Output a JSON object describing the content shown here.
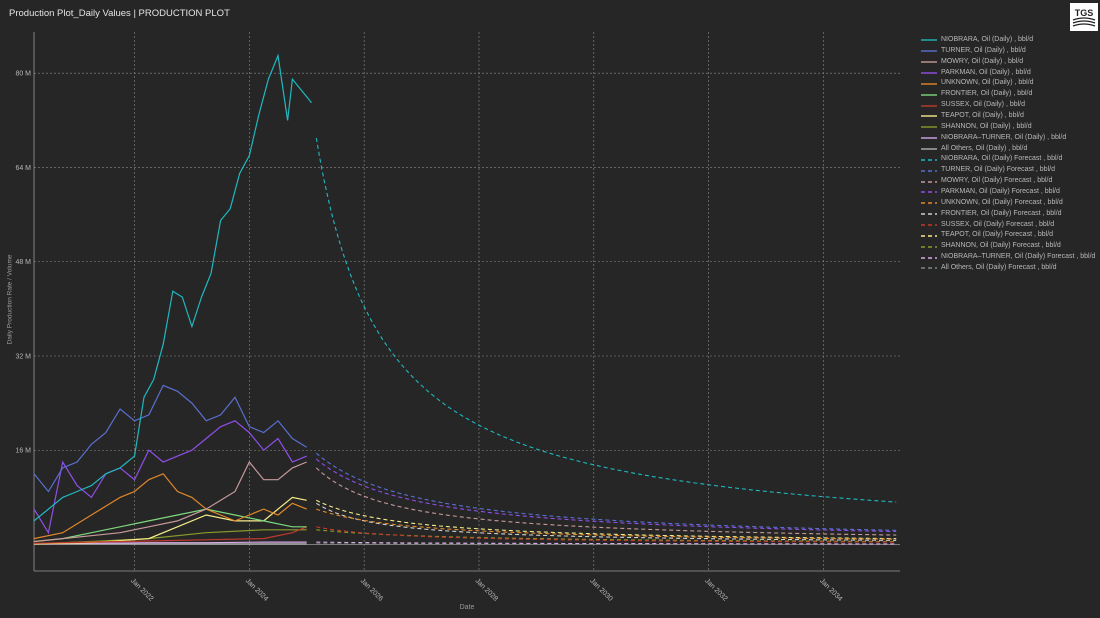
{
  "header": {
    "title": "Production Plot_Daily Values | PRODUCTION PLOT",
    "logo_text": "TGS"
  },
  "chart_data": {
    "type": "line",
    "title": "Production Plot_Daily Values | PRODUCTION PLOT",
    "xlabel": "Date",
    "ylabel": "Daily Production Rate / Volume",
    "xlim": [
      "2020-04-01",
      "2035-05-01"
    ],
    "ylim": [
      -4.5,
      87
    ],
    "yticks": [
      16,
      32,
      48,
      64,
      80
    ],
    "ytick_labels": [
      "16 M",
      "32 M",
      "48 M",
      "64 M",
      "80 M"
    ],
    "xticks": [
      "2022-01-01",
      "2024-01-01",
      "2026-01-01",
      "2028-01-01",
      "2030-01-01",
      "2032-01-01",
      "2034-01-01"
    ],
    "xtick_labels": [
      "Jan 2022",
      "Jan 2024",
      "Jan 2026",
      "Jan 2028",
      "Jan 2030",
      "Jan 2032",
      "Jan 2034"
    ],
    "grid": true,
    "legend_position": "right",
    "series": [
      {
        "name": "NIOBRARA, Oil (Daily) , bbl/d",
        "color": "#1fb8c0",
        "dash": false,
        "x": [
          "2020-04",
          "2020-07",
          "2020-10",
          "2021-01",
          "2021-04",
          "2021-07",
          "2021-10",
          "2022-01",
          "2022-03",
          "2022-05",
          "2022-07",
          "2022-09",
          "2022-11",
          "2023-01",
          "2023-03",
          "2023-05",
          "2023-07",
          "2023-09",
          "2023-11",
          "2024-01",
          "2024-03",
          "2024-05",
          "2024-07",
          "2024-09",
          "2024-10",
          "2024-11",
          "2025-01",
          "2025-02"
        ],
        "y": [
          4,
          6,
          8,
          9,
          10,
          12,
          13,
          15,
          25,
          28,
          34,
          43,
          42,
          37,
          42,
          46,
          55,
          57,
          63,
          66,
          73,
          79,
          83,
          72,
          79,
          78,
          76,
          75
        ]
      },
      {
        "name": "TURNER, Oil (Daily) , bbl/d",
        "color": "#5a6fd0",
        "dash": false,
        "x": [
          "2020-04",
          "2020-07",
          "2020-10",
          "2021-01",
          "2021-04",
          "2021-07",
          "2021-10",
          "2022-01",
          "2022-04",
          "2022-07",
          "2022-10",
          "2023-01",
          "2023-04",
          "2023-07",
          "2023-10",
          "2024-01",
          "2024-04",
          "2024-07",
          "2024-10",
          "2025-01"
        ],
        "y": [
          12,
          9,
          13,
          14,
          17,
          19,
          23,
          21,
          22,
          27,
          26,
          24,
          21,
          22,
          25,
          20,
          19,
          21,
          18,
          16.5
        ]
      },
      {
        "name": "MOWRY, Oil (Daily) , bbl/d",
        "color": "#c89a9a",
        "dash": false,
        "x": [
          "2020-04",
          "2020-10",
          "2021-04",
          "2021-10",
          "2022-04",
          "2022-10",
          "2023-04",
          "2023-10",
          "2024-01",
          "2024-04",
          "2024-07",
          "2024-10",
          "2025-01"
        ],
        "y": [
          0.5,
          1,
          1.5,
          2,
          3,
          4,
          6,
          9,
          14,
          11,
          11,
          13,
          14
        ]
      },
      {
        "name": "PARKMAN, Oil (Daily) , bbl/d",
        "color": "#8f4fe8",
        "dash": false,
        "x": [
          "2020-04",
          "2020-07",
          "2020-10",
          "2021-01",
          "2021-04",
          "2021-07",
          "2021-10",
          "2022-01",
          "2022-04",
          "2022-07",
          "2022-10",
          "2023-01",
          "2023-04",
          "2023-07",
          "2023-10",
          "2024-01",
          "2024-04",
          "2024-07",
          "2024-10",
          "2025-01"
        ],
        "y": [
          6,
          2,
          14,
          10,
          8,
          12,
          13,
          11,
          16,
          14,
          15,
          16,
          18,
          20,
          21,
          19,
          16,
          18,
          14,
          15
        ]
      },
      {
        "name": "UNKNOWN, Oil (Daily) , bbl/d",
        "color": "#e0882a",
        "dash": false,
        "x": [
          "2020-04",
          "2020-10",
          "2021-04",
          "2021-10",
          "2022-01",
          "2022-04",
          "2022-07",
          "2022-10",
          "2023-01",
          "2023-04",
          "2023-07",
          "2023-10",
          "2024-01",
          "2024-04",
          "2024-07",
          "2024-10",
          "2025-01"
        ],
        "y": [
          1,
          2,
          5,
          8,
          9,
          11,
          12,
          9,
          8,
          6,
          5,
          4,
          5,
          6,
          5,
          7,
          6
        ]
      },
      {
        "name": "FRONTIER, Oil (Daily) , bbl/d",
        "color": "#7ed87e",
        "dash": false,
        "x": [
          "2020-04",
          "2020-10",
          "2021-04",
          "2021-10",
          "2022-04",
          "2022-10",
          "2023-04",
          "2023-10",
          "2024-04",
          "2024-10",
          "2025-01"
        ],
        "y": [
          0.5,
          1,
          2,
          3,
          4,
          5,
          6,
          5,
          4,
          3,
          3
        ]
      },
      {
        "name": "SUSSEX, Oil (Daily) , bbl/d",
        "color": "#c0392b",
        "dash": false,
        "x": [
          "2020-04",
          "2021-04",
          "2022-04",
          "2023-04",
          "2024-04",
          "2024-10",
          "2025-01"
        ],
        "y": [
          0.2,
          0.4,
          0.6,
          0.8,
          1,
          2,
          3
        ]
      },
      {
        "name": "TEAPOT, Oil (Daily) , bbl/d",
        "color": "#f5ec8a",
        "dash": false,
        "x": [
          "2020-04",
          "2021-04",
          "2022-04",
          "2022-10",
          "2023-04",
          "2023-10",
          "2024-04",
          "2024-07",
          "2024-10",
          "2025-01"
        ],
        "y": [
          0.1,
          0.3,
          1,
          3,
          5,
          4,
          4,
          6,
          8,
          7.5
        ]
      },
      {
        "name": "SHANNON, Oil (Daily) , bbl/d",
        "color": "#8a9a2a",
        "dash": false,
        "x": [
          "2020-04",
          "2021-04",
          "2022-04",
          "2023-04",
          "2024-04",
          "2025-01"
        ],
        "y": [
          0.1,
          0.5,
          1,
          2,
          2.5,
          2.5
        ]
      },
      {
        "name": "NIOBRARA–TURNER, Oil (Daily) , bbl/d",
        "color": "#d8a8e8",
        "dash": false,
        "x": [
          "2020-04",
          "2021-04",
          "2022-04",
          "2023-04",
          "2024-04",
          "2025-01"
        ],
        "y": [
          0.1,
          0.2,
          0.3,
          0.3,
          0.4,
          0.4
        ]
      },
      {
        "name": "All Others, Oil (Daily) , bbl/d",
        "color": "#b0b0b0",
        "dash": false,
        "x": [
          "2020-04",
          "2025-01"
        ],
        "y": [
          0.1,
          0.1
        ]
      },
      {
        "name": "NIOBRARA, Oil (Daily) Forecast , bbl/d",
        "color": "#1fb8c0",
        "dash": true,
        "forecast": {
          "start": "2025-03",
          "q0": 69,
          "q1": 7.2,
          "b": 1
        }
      },
      {
        "name": "TURNER, Oil (Daily) Forecast , bbl/d",
        "color": "#5a6fd0",
        "dash": true,
        "forecast": {
          "start": "2025-03",
          "q0": 15.5,
          "q1": 2.4,
          "b": 1
        }
      },
      {
        "name": "MOWRY, Oil (Daily) Forecast , bbl/d",
        "color": "#c89a9a",
        "dash": true,
        "forecast": {
          "start": "2025-03",
          "q0": 13,
          "q1": 1.6,
          "b": 1
        }
      },
      {
        "name": "PARKMAN, Oil (Daily) Forecast , bbl/d",
        "color": "#8f4fe8",
        "dash": true,
        "forecast": {
          "start": "2025-03",
          "q0": 14.5,
          "q1": 2.2,
          "b": 1
        }
      },
      {
        "name": "UNKNOWN, Oil (Daily) Forecast , bbl/d",
        "color": "#e0882a",
        "dash": true,
        "forecast": {
          "start": "2025-03",
          "q0": 6,
          "q1": 0.9,
          "b": 1
        }
      },
      {
        "name": "FRONTIER, Oil (Daily) Forecast , bbl/d",
        "color": "#cfcfcf",
        "dash": true,
        "forecast": {
          "start": "2025-03",
          "q0": 7,
          "q1": 0.7,
          "b": 1
        }
      },
      {
        "name": "SUSSEX, Oil (Daily) Forecast , bbl/d",
        "color": "#c0392b",
        "dash": true,
        "forecast": {
          "start": "2025-03",
          "q0": 3,
          "q1": 0.4,
          "b": 1
        }
      },
      {
        "name": "TEAPOT, Oil (Daily) Forecast , bbl/d",
        "color": "#f5ec8a",
        "dash": true,
        "forecast": {
          "start": "2025-03",
          "q0": 7.5,
          "q1": 1,
          "b": 1
        }
      },
      {
        "name": "SHANNON, Oil (Daily) Forecast , bbl/d",
        "color": "#8a9a2a",
        "dash": true,
        "forecast": {
          "start": "2025-03",
          "q0": 2.5,
          "q1": 0.5,
          "b": 1
        }
      },
      {
        "name": "NIOBRARA–TURNER, Oil (Daily) Forecast , bbl/d",
        "color": "#d8a8e8",
        "dash": true,
        "forecast": {
          "start": "2025-03",
          "q0": 0.4,
          "q1": 0.1,
          "b": 1
        }
      },
      {
        "name": "All Others, Oil (Daily) Forecast , bbl/d",
        "color": "#7a8a7a",
        "dash": true,
        "forecast": {
          "start": "2025-03",
          "q0": 0.1,
          "q1": 0.05,
          "b": 1
        }
      }
    ]
  }
}
